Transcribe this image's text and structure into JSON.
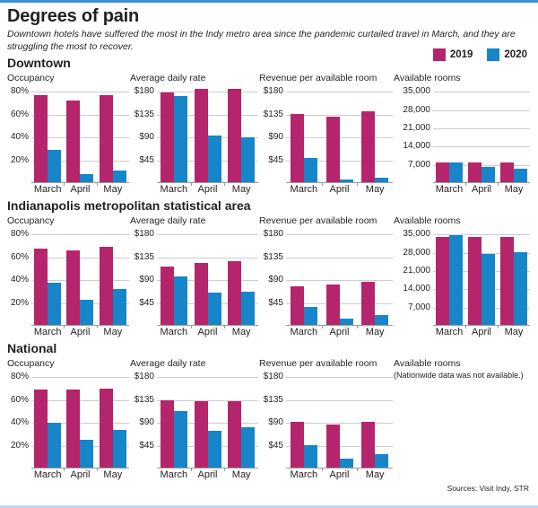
{
  "header": {
    "title": "Degrees of pain",
    "subtitle": "Downtown hotels have suffered the most in the Indy metro area since the pandemic curtailed travel in March, and they are struggling the most to recover.",
    "legend": [
      {
        "label": "2019",
        "color": "#b4256b"
      },
      {
        "label": "2020",
        "color": "#1786c8"
      }
    ]
  },
  "source": "Sources: Visit Indy, STR",
  "colors": {
    "series_2019": "#b4256b",
    "series_2020": "#1786c8",
    "top_rule": "#4191d9",
    "bottom_rule": "#bcd9f2",
    "gridline": "#cccccc",
    "axis": "#9a9a9a"
  },
  "chart_data": {
    "type": "bar",
    "categories": [
      "March",
      "April",
      "May"
    ],
    "series_names": [
      "2019",
      "2020"
    ],
    "legend_position": "top-right",
    "grid": true,
    "sections": [
      {
        "label": "Downtown",
        "charts": [
          {
            "title": "Occupancy",
            "ymax": 80,
            "yticks": [
              {
                "label": "80%",
                "value": 80
              },
              {
                "label": "60%",
                "value": 60
              },
              {
                "label": "40%",
                "value": 40
              },
              {
                "label": "20%",
                "value": 20
              }
            ],
            "series": [
              {
                "name": "2019",
                "values": [
                  76,
                  71,
                  76
                ]
              },
              {
                "name": "2020",
                "values": [
                  28,
                  7,
                  10
                ]
              }
            ]
          },
          {
            "title": "Average daily rate",
            "ymax": 180,
            "yticks": [
              {
                "label": "$180",
                "value": 180
              },
              {
                "label": "$135",
                "value": 135
              },
              {
                "label": "$90",
                "value": 90
              },
              {
                "label": "$45",
                "value": 45
              }
            ],
            "series": [
              {
                "name": "2019",
                "values": [
                  176,
                  183,
                  183
                ]
              },
              {
                "name": "2020",
                "values": [
                  170,
                  91,
                  88
                ]
              }
            ]
          },
          {
            "title": "Revenue per available room",
            "ymax": 180,
            "yticks": [
              {
                "label": "$180",
                "value": 180
              },
              {
                "label": "$135",
                "value": 135
              },
              {
                "label": "$90",
                "value": 90
              },
              {
                "label": "$45",
                "value": 45
              }
            ],
            "series": [
              {
                "name": "2019",
                "values": [
                  134,
                  129,
                  139
                ]
              },
              {
                "name": "2020",
                "values": [
                  48,
                  6,
                  9
                ]
              }
            ]
          },
          {
            "title": "Available rooms",
            "ymax": 35000,
            "yticks": [
              {
                "label": "35,000",
                "value": 35000
              },
              {
                "label": "28,000",
                "value": 28000
              },
              {
                "label": "21,000",
                "value": 21000
              },
              {
                "label": "14,000",
                "value": 14000
              },
              {
                "label": "7,000",
                "value": 7000
              }
            ],
            "series": [
              {
                "name": "2019",
                "values": [
                  7600,
                  7700,
                  7700
                ]
              },
              {
                "name": "2020",
                "values": [
                  7700,
                  5800,
                  5300
                ]
              }
            ]
          }
        ]
      },
      {
        "label": "Indianapolis metropolitan statistical area",
        "charts": [
          {
            "title": "Occupancy",
            "ymax": 80,
            "yticks": [
              {
                "label": "80%",
                "value": 80
              },
              {
                "label": "60%",
                "value": 60
              },
              {
                "label": "40%",
                "value": 40
              },
              {
                "label": "20%",
                "value": 20
              }
            ],
            "series": [
              {
                "name": "2019",
                "values": [
                  67,
                  65,
                  68
                ]
              },
              {
                "name": "2020",
                "values": [
                  37,
                  22,
                  31
                ]
              }
            ]
          },
          {
            "title": "Average daily rate",
            "ymax": 180,
            "yticks": [
              {
                "label": "$180",
                "value": 180
              },
              {
                "label": "$135",
                "value": 135
              },
              {
                "label": "$90",
                "value": 90
              },
              {
                "label": "$45",
                "value": 45
              }
            ],
            "series": [
              {
                "name": "2019",
                "values": [
                  115,
                  122,
                  125
                ]
              },
              {
                "name": "2020",
                "values": [
                  96,
                  64,
                  66
                ]
              }
            ]
          },
          {
            "title": "Revenue per available room",
            "ymax": 180,
            "yticks": [
              {
                "label": "$180",
                "value": 180
              },
              {
                "label": "$135",
                "value": 135
              },
              {
                "label": "$90",
                "value": 90
              },
              {
                "label": "$45",
                "value": 45
              }
            ],
            "series": [
              {
                "name": "2019",
                "values": [
                  76,
                  79,
                  84
                ]
              },
              {
                "name": "2020",
                "values": [
                  36,
                  13,
                  20
                ]
              }
            ]
          },
          {
            "title": "Available rooms",
            "ymax": 35000,
            "yticks": [
              {
                "label": "35,000",
                "value": 35000
              },
              {
                "label": "28,000",
                "value": 28000
              },
              {
                "label": "21,000",
                "value": 21000
              },
              {
                "label": "14,000",
                "value": 14000
              },
              {
                "label": "7,000",
                "value": 7000
              }
            ],
            "series": [
              {
                "name": "2019",
                "values": [
                  33500,
                  33600,
                  33600
                ]
              },
              {
                "name": "2020",
                "values": [
                  34400,
                  27200,
                  27900
                ]
              }
            ]
          }
        ]
      },
      {
        "label": "National",
        "charts": [
          {
            "title": "Occupancy",
            "ymax": 80,
            "yticks": [
              {
                "label": "80%",
                "value": 80
              },
              {
                "label": "60%",
                "value": 60
              },
              {
                "label": "40%",
                "value": 40
              },
              {
                "label": "20%",
                "value": 20
              }
            ],
            "series": [
              {
                "name": "2019",
                "values": [
                  68,
                  68,
                  69
                ]
              },
              {
                "name": "2020",
                "values": [
                  39,
                  24,
                  33
                ]
              }
            ]
          },
          {
            "title": "Average daily rate",
            "ymax": 180,
            "yticks": [
              {
                "label": "$180",
                "value": 180
              },
              {
                "label": "$135",
                "value": 135
              },
              {
                "label": "$90",
                "value": 90
              },
              {
                "label": "$45",
                "value": 45
              }
            ],
            "series": [
              {
                "name": "2019",
                "values": [
                  132,
                  131,
                  130
                ]
              },
              {
                "name": "2020",
                "values": [
                  111,
                  73,
                  79
                ]
              }
            ]
          },
          {
            "title": "Revenue per available room",
            "ymax": 180,
            "yticks": [
              {
                "label": "$180",
                "value": 180
              },
              {
                "label": "$135",
                "value": 135
              },
              {
                "label": "$90",
                "value": 90
              },
              {
                "label": "$45",
                "value": 45
              }
            ],
            "series": [
              {
                "name": "2019",
                "values": [
                  90,
                  84,
                  90
                ]
              },
              {
                "name": "2020",
                "values": [
                  44,
                  17,
                  26
                ]
              }
            ]
          },
          {
            "title": "Available rooms",
            "note": "(Nationwide data was not available.)"
          }
        ]
      }
    ]
  }
}
